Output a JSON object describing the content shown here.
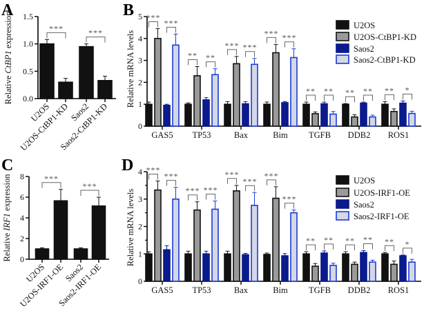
{
  "colors": {
    "U2OS": "#111111",
    "KD_gray": "#9a9a9a",
    "Saos2": "#0b1a8c",
    "Saos2_light": "#d4d7e6",
    "blue_border": "#1a3ad6",
    "bracket": "#666666"
  },
  "chart_data": [
    {
      "panel": "A",
      "type": "bar",
      "ylabel": [
        "Relative ",
        "CtBP1",
        " expression"
      ],
      "ylim": [
        0,
        1.5
      ],
      "yticks": [
        "0.0",
        "0.5",
        "1.0",
        "1.5"
      ],
      "ytick_values": [
        0,
        0.5,
        1.0,
        1.5
      ],
      "categories": [
        "U2OS",
        "U2OS-CtBP1-KD",
        "Saos2",
        "Saos2-CtBP1-KD"
      ],
      "values": [
        1.0,
        0.3,
        0.95,
        0.33
      ],
      "errors": [
        0.08,
        0.07,
        0.05,
        0.08
      ],
      "significance": [
        "***",
        "***"
      ]
    },
    {
      "panel": "B",
      "type": "bar",
      "ylabel": [
        "Relative mRNA levels"
      ],
      "ylim": [
        0,
        5
      ],
      "yticks": [
        "0",
        "1",
        "2",
        "3",
        "4",
        "5"
      ],
      "ytick_values": [
        0,
        1,
        2,
        3,
        4,
        5
      ],
      "categories": [
        "GAS5",
        "TP53",
        "Bax",
        "Bim",
        "TGFB",
        "DDB2",
        "ROS1"
      ],
      "legend": "top-right",
      "series": [
        {
          "name": "U2OS",
          "values": [
            1.0,
            1.0,
            1.0,
            1.0,
            1.0,
            1.0,
            1.0
          ],
          "errors": [
            0.1,
            0.06,
            0.12,
            0.1,
            0.1,
            0.03,
            0.12
          ]
        },
        {
          "name": "U2OS-CtBP1-KD",
          "values": [
            4.0,
            2.3,
            2.85,
            3.35,
            0.57,
            0.42,
            0.67
          ],
          "errors": [
            0.45,
            0.42,
            0.33,
            0.38,
            0.08,
            0.1,
            0.12
          ]
        },
        {
          "name": "Saos2",
          "values": [
            0.95,
            1.2,
            1.02,
            1.07,
            1.02,
            1.05,
            1.05
          ],
          "errors": [
            0.05,
            0.1,
            0.1,
            0.05,
            0.08,
            0.05,
            0.1
          ]
        },
        {
          "name": "Saos2-CtBP1-KD",
          "values": [
            3.7,
            2.35,
            2.82,
            3.13,
            0.55,
            0.42,
            0.58
          ],
          "errors": [
            0.5,
            0.27,
            0.27,
            0.4,
            0.12,
            0.08,
            0.1
          ]
        }
      ],
      "significance": [
        [
          "***",
          "***"
        ],
        [
          "**",
          "**"
        ],
        [
          "***",
          "***"
        ],
        [
          "***",
          "***"
        ],
        [
          "**",
          "**"
        ],
        [
          "**",
          "**"
        ],
        [
          "**",
          "*"
        ]
      ]
    },
    {
      "panel": "C",
      "type": "bar",
      "ylabel": [
        "Relative ",
        "IRF1",
        " expression"
      ],
      "ylim": [
        0,
        8
      ],
      "yticks": [
        "0",
        "2",
        "4",
        "6",
        "8"
      ],
      "ytick_values": [
        0,
        2,
        4,
        6,
        8
      ],
      "categories": [
        "U2OS",
        "U2OS-IRF1-OE",
        "Saos2",
        "Saos2-IRF1-OE"
      ],
      "values": [
        1.0,
        5.65,
        1.0,
        5.15
      ],
      "errors": [
        0.1,
        1.1,
        0.1,
        0.85
      ],
      "significance": [
        "***",
        "***"
      ]
    },
    {
      "panel": "D",
      "type": "bar",
      "ylabel": [
        "Relative mRNA levels"
      ],
      "ylim": [
        0,
        4
      ],
      "yticks": [
        "0",
        "1",
        "2",
        "3",
        "4"
      ],
      "ytick_values": [
        0,
        1,
        2,
        3,
        4
      ],
      "categories": [
        "GAS5",
        "TP53",
        "Bax",
        "Bim",
        "TGFB",
        "DDB2",
        "ROS1"
      ],
      "legend": "top-right",
      "series": [
        {
          "name": "U2OS",
          "values": [
            1.0,
            1.0,
            1.0,
            0.98,
            1.0,
            1.0,
            1.0
          ],
          "errors": [
            0.08,
            0.1,
            0.1,
            0.05,
            0.08,
            0.08,
            0.05
          ]
        },
        {
          "name": "U2OS-IRF1-OE",
          "values": [
            3.33,
            2.6,
            3.3,
            3.03,
            0.55,
            0.62,
            0.62
          ],
          "errors": [
            0.33,
            0.3,
            0.2,
            0.42,
            0.1,
            0.08,
            0.12
          ]
        },
        {
          "name": "Saos2",
          "values": [
            1.15,
            1.0,
            0.97,
            0.93,
            1.03,
            1.05,
            0.93
          ],
          "errors": [
            0.15,
            0.1,
            0.05,
            0.08,
            0.08,
            0.07,
            0.03
          ]
        },
        {
          "name": "Saos2-IRF1-OE",
          "values": [
            3.0,
            2.63,
            2.77,
            2.5,
            0.58,
            0.7,
            0.7
          ],
          "errors": [
            0.43,
            0.3,
            0.47,
            0.1,
            0.08,
            0.07,
            0.1
          ]
        }
      ],
      "significance": [
        [
          "***",
          "***"
        ],
        [
          "***",
          "***"
        ],
        [
          "***",
          "***"
        ],
        [
          "***",
          "***"
        ],
        [
          "**",
          "**"
        ],
        [
          "**",
          "**"
        ],
        [
          "**",
          "*"
        ]
      ]
    }
  ]
}
